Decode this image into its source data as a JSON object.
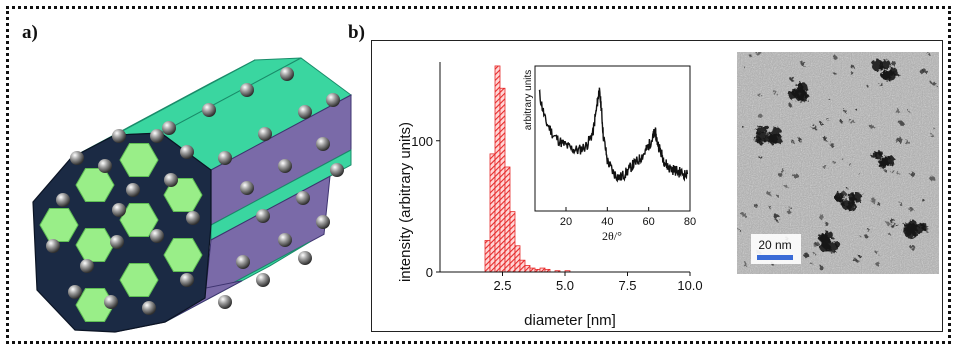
{
  "panels": {
    "a_label": "a)",
    "b_label": "b)"
  },
  "colors": {
    "channel_face": "#99ee88",
    "frame_dark": "#1b2a44",
    "side_purple": "#7a6aa8",
    "top_green": "#3ad6a0",
    "histogram_red": "#e62a2a",
    "scale_bar_blue": "#3a6bd6"
  },
  "chart_data": {
    "type": "bar",
    "xlabel": "diameter [nm]",
    "ylabel": "intensity (arbitrary units)",
    "xlim": [
      0,
      10
    ],
    "ylim": [
      0,
      160
    ],
    "xticks": [
      "2.5",
      "5.0",
      "7.5",
      "10.0"
    ],
    "yticks": [
      "0",
      "100"
    ],
    "bin_width": 0.2,
    "bins": [
      {
        "x": 1.9,
        "value": 24
      },
      {
        "x": 2.1,
        "value": 90
      },
      {
        "x": 2.3,
        "value": 157
      },
      {
        "x": 2.5,
        "value": 140
      },
      {
        "x": 2.7,
        "value": 80
      },
      {
        "x": 2.9,
        "value": 46
      },
      {
        "x": 3.1,
        "value": 20
      },
      {
        "x": 3.3,
        "value": 9
      },
      {
        "x": 3.5,
        "value": 5
      },
      {
        "x": 3.7,
        "value": 3
      },
      {
        "x": 3.9,
        "value": 2
      },
      {
        "x": 4.1,
        "value": 3
      },
      {
        "x": 4.3,
        "value": 2
      },
      {
        "x": 4.7,
        "value": 1
      },
      {
        "x": 5.1,
        "value": 1
      }
    ],
    "inset": {
      "type": "line",
      "xlabel": "2θ/°",
      "ylabel": "arbitrary units",
      "xlim": [
        5,
        80
      ],
      "xticks": [
        "20",
        "40",
        "60",
        "80"
      ],
      "x": [
        7,
        10,
        14,
        18,
        22,
        26,
        30,
        33,
        35,
        36,
        37,
        38,
        40,
        43,
        46,
        49,
        52,
        55,
        58,
        60,
        62,
        63,
        64,
        66,
        68,
        70,
        73,
        76,
        79
      ],
      "y": [
        0.88,
        0.66,
        0.54,
        0.48,
        0.44,
        0.42,
        0.46,
        0.56,
        0.78,
        0.9,
        0.78,
        0.55,
        0.34,
        0.24,
        0.2,
        0.24,
        0.3,
        0.34,
        0.4,
        0.46,
        0.52,
        0.58,
        0.5,
        0.4,
        0.32,
        0.28,
        0.26,
        0.24,
        0.22
      ]
    }
  },
  "micrograph": {
    "scale_bar_label": "20 nm"
  }
}
